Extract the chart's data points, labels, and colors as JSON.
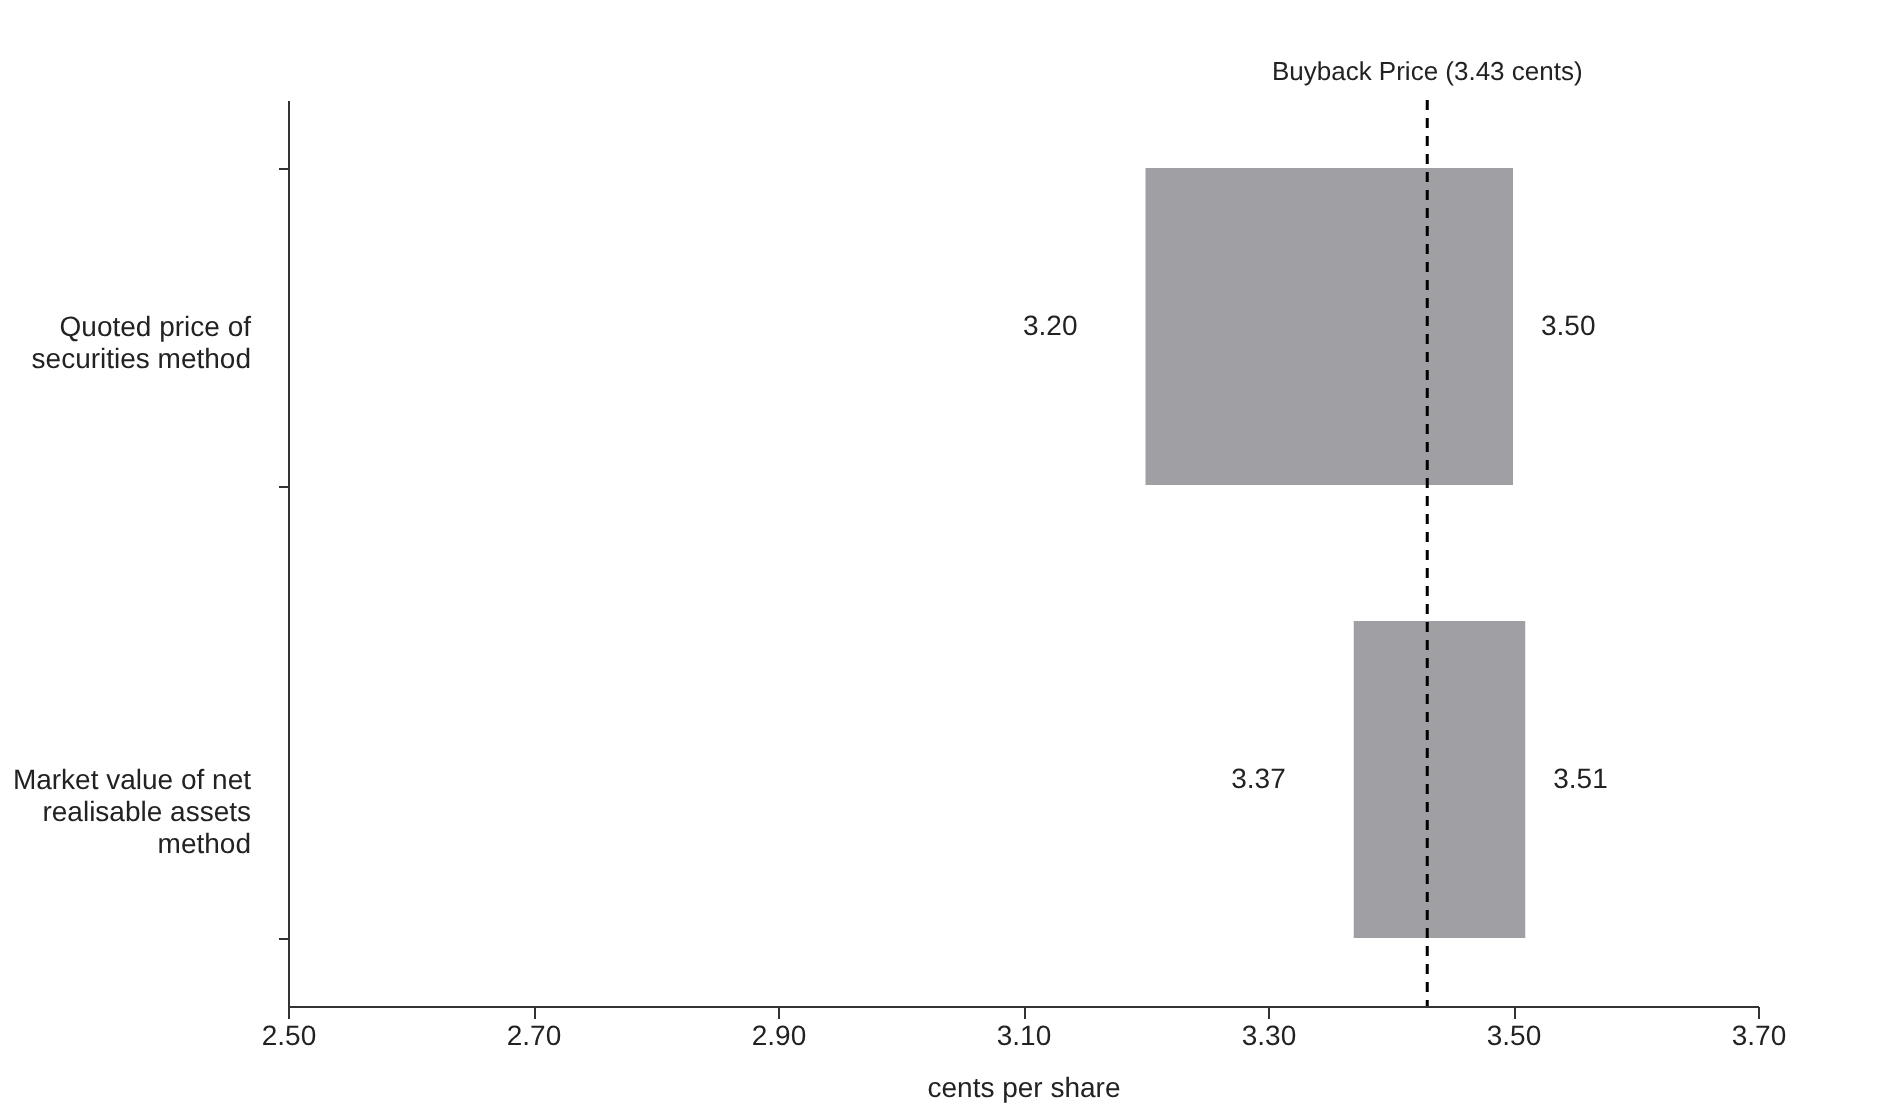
{
  "chart_data": {
    "type": "bar",
    "orientation": "horizontal",
    "xlabel": "cents per share",
    "categories": [
      "Quoted price of securities method",
      "Market value of net realisable assets method"
    ],
    "base": [
      3.2,
      3.37
    ],
    "values": [
      0.3,
      0.14
    ],
    "color": "#a0a0a4",
    "xlim": [
      2.5,
      3.7
    ],
    "xticks": [
      {
        "value": 2.5,
        "label": "2.50"
      },
      {
        "value": 2.7,
        "label": "2.70"
      },
      {
        "value": 2.9,
        "label": "2.90"
      },
      {
        "value": 3.1,
        "label": "3.10"
      },
      {
        "value": 3.3,
        "label": "3.30"
      },
      {
        "value": 3.5,
        "label": "3.50"
      },
      {
        "value": 3.7,
        "label": "3.70"
      }
    ],
    "grid": false,
    "ref_lines": [
      {
        "axis": "x",
        "value": 3.43,
        "label": "Buyback Price (3.43 cents)",
        "color": "#000000",
        "line_style": "dashed"
      }
    ],
    "annotations": [
      {
        "text": "3.20",
        "x": 3.2,
        "y": "Quoted price of securities method"
      },
      {
        "text": "3.50",
        "x": 3.5,
        "y": "Quoted price of securities method"
      },
      {
        "text": "3.37",
        "x": 3.37,
        "y": "Market value of net realisable assets method"
      },
      {
        "text": "3.51",
        "x": 3.51,
        "y": "Market value of net realisable assets method"
      }
    ]
  }
}
